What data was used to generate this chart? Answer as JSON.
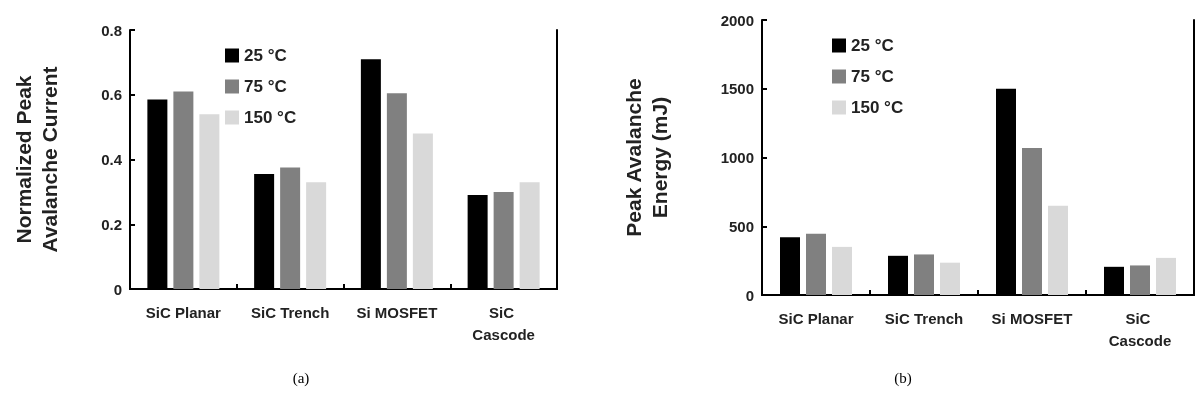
{
  "chart_data": [
    {
      "type": "bar",
      "ylabel": "Normalized Peak Avalanche Current",
      "categories": [
        "SiC Planar",
        "SiC Trench",
        "Si MOSFET",
        "SiC Cascode"
      ],
      "series": [
        {
          "name": "25 °C",
          "color": "#000000",
          "values": [
            0.585,
            0.355,
            0.71,
            0.29
          ]
        },
        {
          "name": "75 °C",
          "color": "#808080",
          "values": [
            0.61,
            0.375,
            0.605,
            0.3
          ]
        },
        {
          "name": "150 °C",
          "color": "#d9d9d9",
          "values": [
            0.54,
            0.33,
            0.48,
            0.33
          ]
        }
      ],
      "ylim": [
        0,
        0.8
      ],
      "yticks": [
        0,
        0.2,
        0.4,
        0.6,
        0.8
      ],
      "grid": false,
      "legend": "top left",
      "annotations": [
        "(a)"
      ]
    },
    {
      "type": "bar",
      "ylabel": "Peak Avalanche Energy (mJ)",
      "categories": [
        "SiC Planar",
        "SiC Trench",
        "Si MOSFET",
        "SiC Cascode"
      ],
      "series": [
        {
          "name": "25 °C",
          "color": "#000000",
          "values": [
            420,
            285,
            1500,
            205
          ]
        },
        {
          "name": "75 °C",
          "color": "#808080",
          "values": [
            445,
            295,
            1070,
            215
          ]
        },
        {
          "name": "150 °C",
          "color": "#d9d9d9",
          "values": [
            350,
            235,
            650,
            270
          ]
        }
      ],
      "ylim": [
        0,
        2000
      ],
      "yticks": [
        0,
        500,
        1000,
        1500,
        2000
      ],
      "grid": false,
      "legend": "top left",
      "annotations": [
        "(b)"
      ]
    }
  ]
}
